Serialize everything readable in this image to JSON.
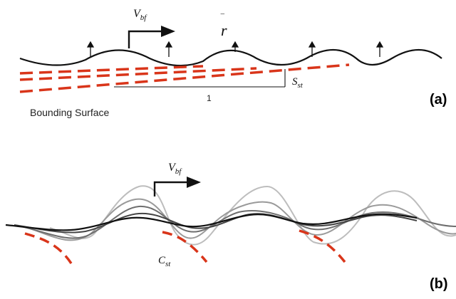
{
  "panel_a": {
    "label": "(a)",
    "velocity_main": "V",
    "velocity_sub": "bf",
    "r_label": "r",
    "r_bar": "‾",
    "slope_main": "S",
    "slope_sub": "st",
    "unit_length": "1",
    "surface_label": "Bounding Surface"
  },
  "panel_b": {
    "label": "(b)",
    "velocity_main": "V",
    "velocity_sub": "bf",
    "curv_main": "C",
    "curv_sub": "st"
  },
  "colors": {
    "wave": "#111111",
    "dash": "#d9351a",
    "gray1": "#444444",
    "gray2": "#6e6e6e",
    "gray3": "#9a9a9a",
    "gray4": "#bdbdbd"
  }
}
